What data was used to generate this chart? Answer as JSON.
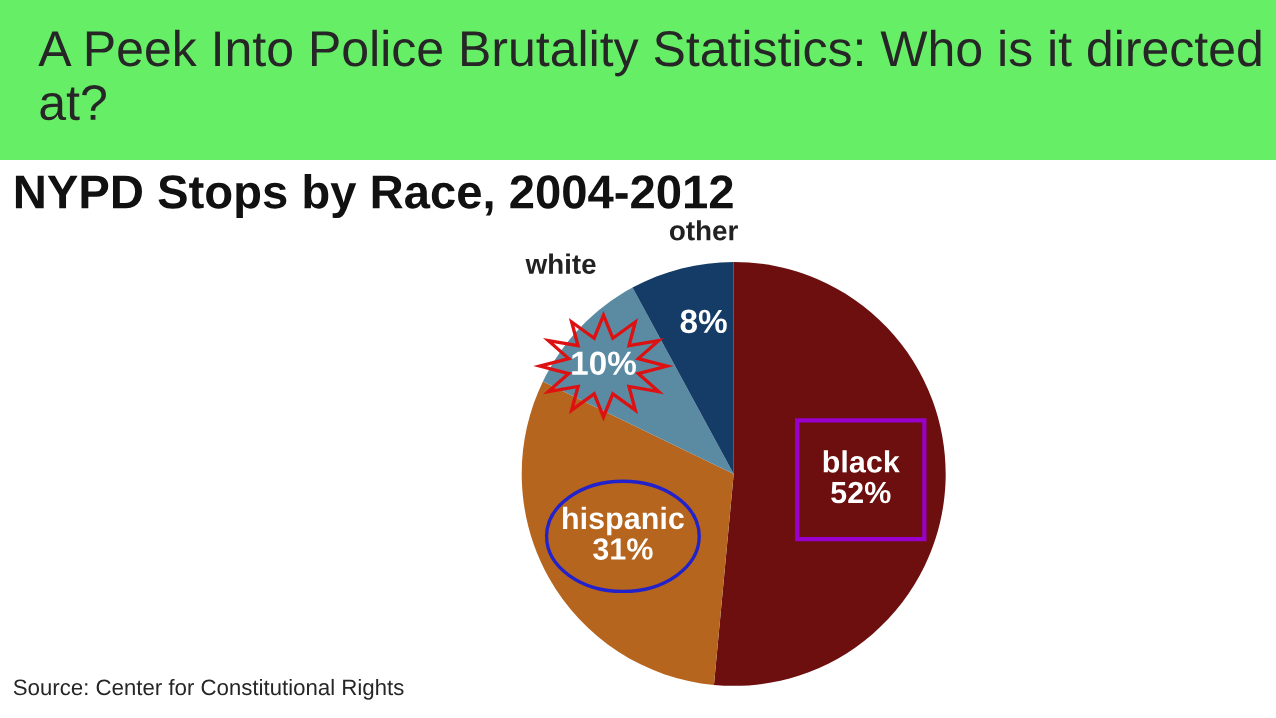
{
  "chart_data": {
    "type": "pie",
    "title": "A Peek Into Police Brutality Statistics: Who is it directed at?",
    "subtitle": "NYPD Stops by Race, 2004-2012",
    "categories": [
      "black",
      "hispanic",
      "white",
      "other"
    ],
    "values": [
      52,
      31,
      10,
      8
    ],
    "value_labels": [
      "52%",
      "31%",
      "10%",
      "8%"
    ],
    "colors": [
      "#6e0f0f",
      "#b5651d",
      "#5b8ba3",
      "#143c66"
    ],
    "annotations": [
      "Source: Center for Constitutional Rights"
    ]
  }
}
